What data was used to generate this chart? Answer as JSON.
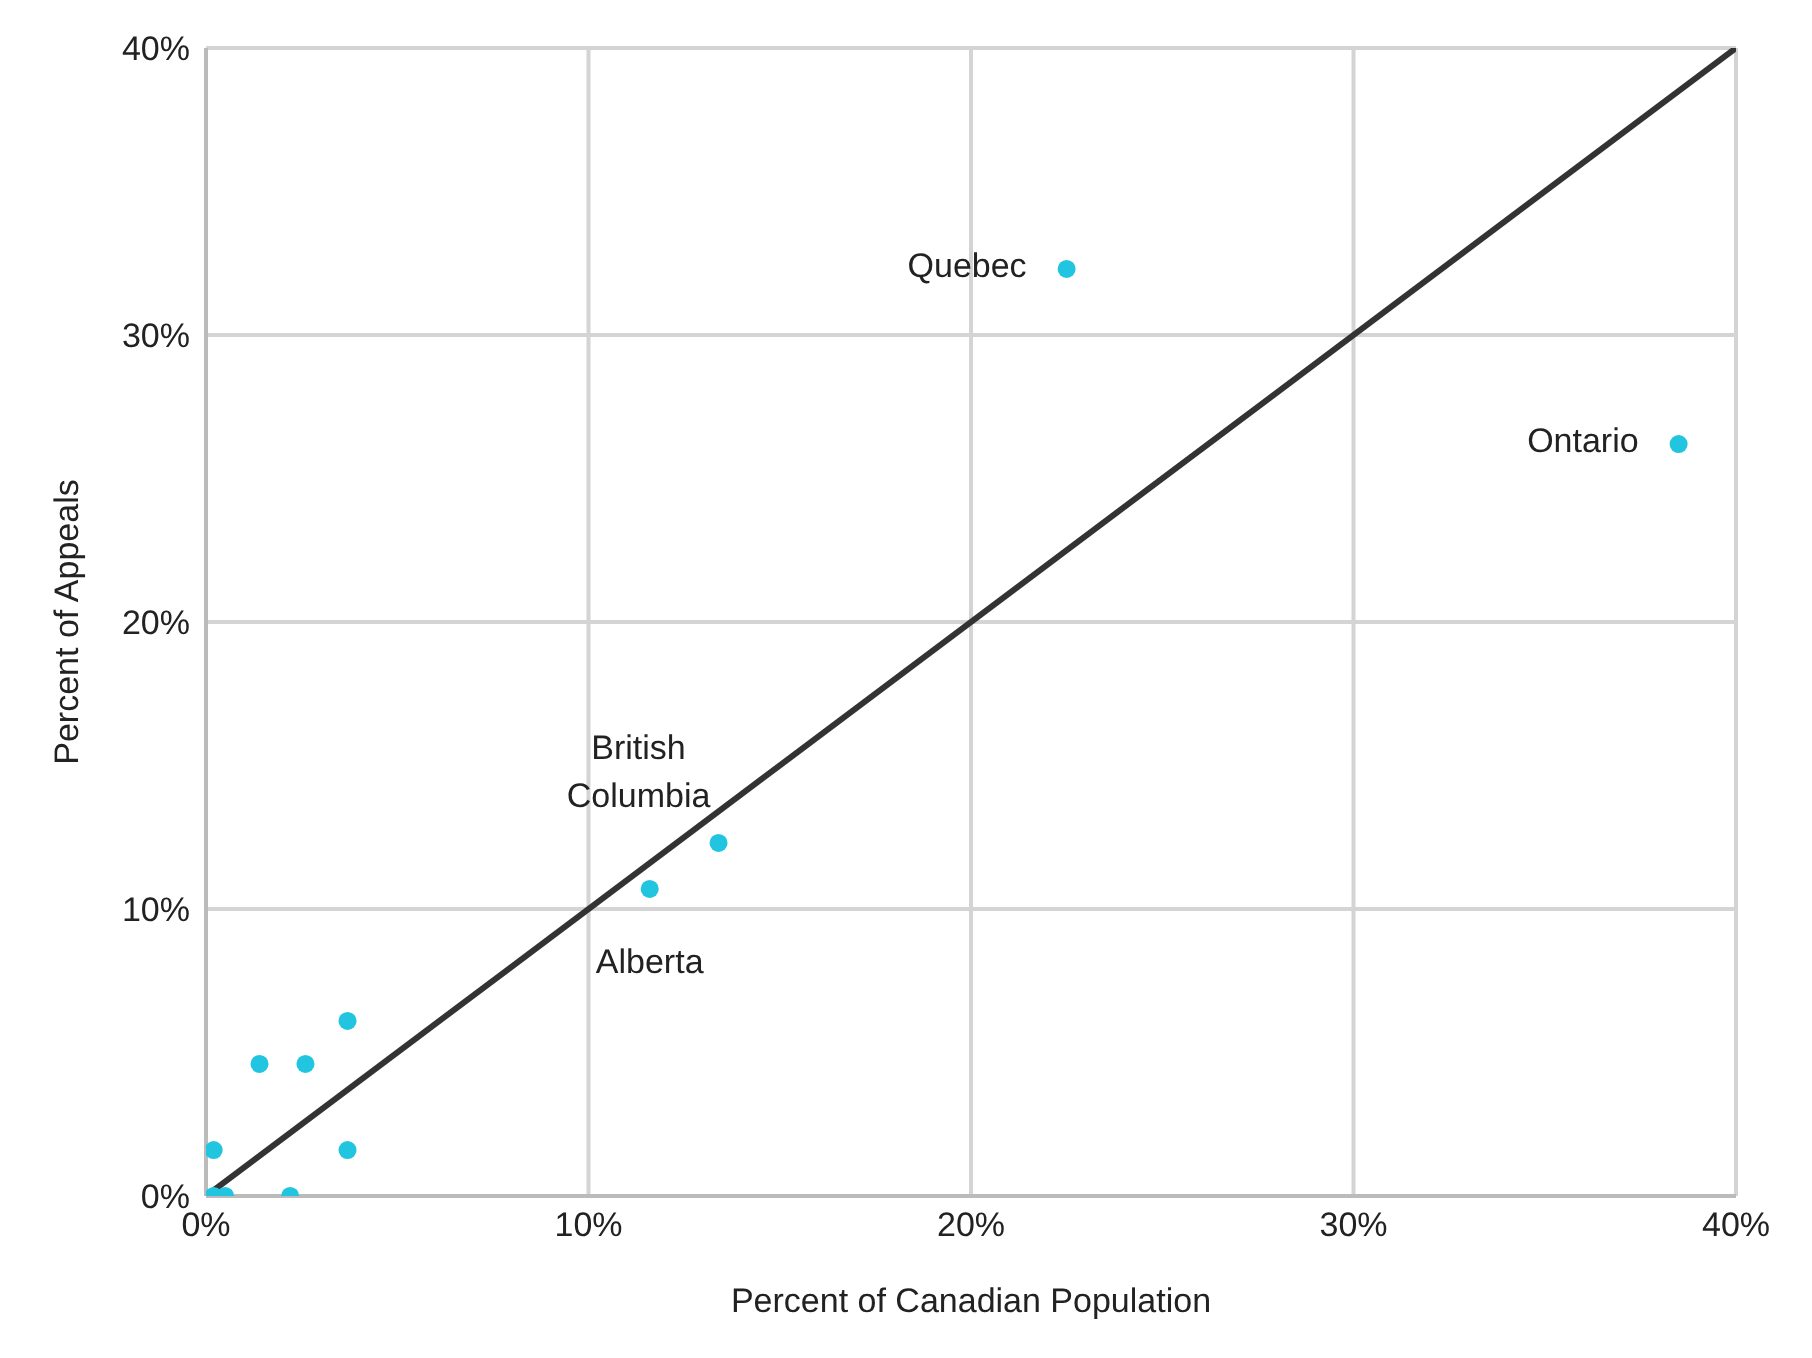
{
  "chart_data": {
    "type": "scatter",
    "xlabel": "Percent of Canadian Population",
    "ylabel": "Percent of Appeals",
    "series": [
      {
        "color": "#22c5e0",
        "marker": "circle",
        "x": [
          22.5,
          38.5,
          13.4,
          11.6,
          0.2,
          0.2,
          0.5,
          1.4,
          2.6,
          3.7,
          3.7,
          2.2
        ],
        "values": [
          32.3,
          26.2,
          12.3,
          10.7,
          1.6,
          0,
          0,
          4.6,
          4.6,
          6.1,
          1.6,
          0
        ]
      },
      {
        "type": "line",
        "color": "#333333",
        "marker": "none",
        "line_style": "solid",
        "x": [
          0,
          40
        ],
        "values": [
          0,
          40
        ]
      }
    ],
    "xlim": [
      0,
      40
    ],
    "ylim": [
      0,
      40
    ],
    "xticks": [
      {
        "value": 0,
        "label": "0%"
      },
      {
        "value": 10,
        "label": "10%"
      },
      {
        "value": 20,
        "label": "20%"
      },
      {
        "value": 30,
        "label": "30%"
      },
      {
        "value": 40,
        "label": "40%"
      }
    ],
    "yticks": [
      {
        "value": 0,
        "label": "0%"
      },
      {
        "value": 10,
        "label": "10%"
      },
      {
        "value": 20,
        "label": "20%"
      },
      {
        "value": 30,
        "label": "30%"
      },
      {
        "value": 40,
        "label": "40%"
      }
    ],
    "grid": true,
    "annotations": [
      {
        "text": "Quebec",
        "x": 22.5,
        "y": 32.3
      },
      {
        "text": "Ontario",
        "x": 38.5,
        "y": 26.2
      },
      {
        "text": "British Columbia",
        "x": 13.4,
        "y": 12.3
      },
      {
        "text": "Alberta",
        "x": 11.6,
        "y": 10.7
      }
    ]
  }
}
